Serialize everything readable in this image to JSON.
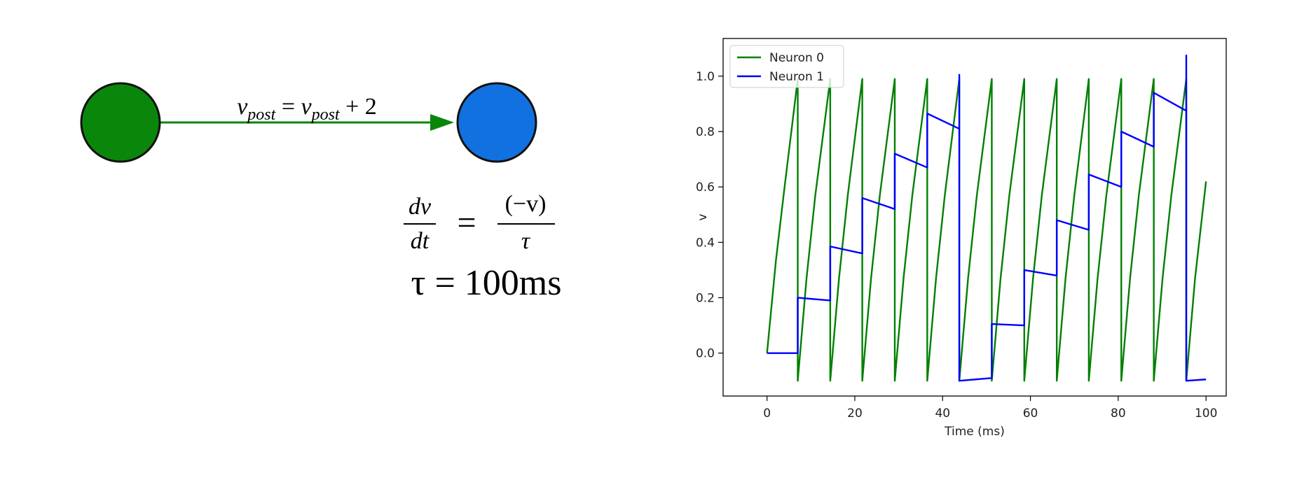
{
  "diagram": {
    "edge_label": [
      "v",
      "post",
      " = ",
      "v",
      "post",
      " + 2"
    ],
    "equation": {
      "left_numerator": "dv",
      "left_denominator": "dt",
      "equals": "=",
      "right_numerator": "(−v)",
      "right_denominator": "τ"
    },
    "tau": "τ = 100ms"
  },
  "chart_data": {
    "type": "line",
    "xlabel": "Time (ms)",
    "ylabel": "v",
    "xlim": [
      -10,
      104.6
    ],
    "ylim": [
      -0.155,
      1.136
    ],
    "xticks": [
      0,
      20,
      40,
      60,
      80,
      100
    ],
    "yticks": [
      {
        "value": 0,
        "label": "0.0"
      },
      {
        "value": 0.2,
        "label": "0.2"
      },
      {
        "value": 0.4,
        "label": "0.4"
      },
      {
        "value": 0.6,
        "label": "0.6"
      },
      {
        "value": 0.8,
        "label": "0.8"
      },
      {
        "value": 1,
        "label": "1.0"
      }
    ],
    "legend": "upper left",
    "series": [
      {
        "name": "Neuron 0",
        "color": "#008000",
        "x": [
          0,
          2,
          4,
          7,
          7,
          9,
          11,
          14.4,
          14.4,
          16.4,
          18.4,
          21.7,
          21.7,
          23.7,
          25.7,
          29.1,
          29.1,
          31.1,
          33.1,
          36.5,
          36.5,
          38.5,
          40.5,
          43.8,
          43.8,
          45.8,
          47.8,
          51.2,
          51.2,
          53.2,
          55.2,
          58.6,
          58.6,
          60.6,
          62.6,
          66,
          66,
          68,
          70,
          73.3,
          73.3,
          75.3,
          77.3,
          80.7,
          80.7,
          82.7,
          84.7,
          88.1,
          88.1,
          90.1,
          92.1,
          95.5,
          95.5,
          97.5,
          100
        ],
        "values": [
          0,
          0.33,
          0.6,
          0.99,
          -0.1,
          0.27,
          0.57,
          0.99,
          -0.1,
          0.27,
          0.57,
          0.99,
          -0.1,
          0.27,
          0.57,
          0.99,
          -0.1,
          0.27,
          0.57,
          0.99,
          -0.1,
          0.27,
          0.57,
          0.99,
          -0.1,
          0.27,
          0.57,
          0.99,
          -0.1,
          0.27,
          0.57,
          0.99,
          -0.1,
          0.27,
          0.57,
          0.99,
          -0.1,
          0.27,
          0.57,
          0.99,
          -0.1,
          0.27,
          0.57,
          0.99,
          -0.1,
          0.27,
          0.57,
          0.99,
          -0.1,
          0.27,
          0.57,
          0.99,
          -0.1,
          0.27,
          0.62
        ]
      },
      {
        "name": "Neuron 1",
        "color": "#0000ff",
        "x": [
          0,
          7,
          7,
          14.4,
          14.4,
          21.7,
          21.7,
          29.1,
          29.1,
          36.5,
          36.5,
          43.8,
          43.8,
          43.8,
          51.2,
          51.2,
          58.6,
          58.6,
          66,
          66,
          73.3,
          73.3,
          80.7,
          80.7,
          88.1,
          88.1,
          95.5,
          95.5,
          95.5,
          100
        ],
        "values": [
          0,
          0,
          0.2,
          0.19,
          0.385,
          0.36,
          0.56,
          0.52,
          0.72,
          0.67,
          0.865,
          0.81,
          1.005,
          -0.1,
          -0.09,
          0.105,
          0.1,
          0.3,
          0.28,
          0.48,
          0.445,
          0.645,
          0.6,
          0.8,
          0.745,
          0.94,
          0.875,
          1.075,
          -0.1,
          -0.095
        ]
      }
    ]
  }
}
